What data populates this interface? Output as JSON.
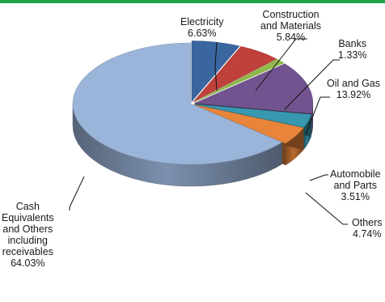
{
  "colors": {
    "top_bar": "#1fa34a",
    "leader": "#111111"
  },
  "chart_data": {
    "type": "pie",
    "title": "",
    "style": "3d-exploded",
    "slices": [
      {
        "label_lines": [
          "Electricity"
        ],
        "value_text": "6.63%",
        "value": 6.63,
        "color": "#3a66a0"
      },
      {
        "label_lines": [
          "Construction",
          "and Materials"
        ],
        "value_text": "5.84%",
        "value": 5.84,
        "color": "#c0403c"
      },
      {
        "label_lines": [
          "Banks"
        ],
        "value_text": "1.33%",
        "value": 1.33,
        "color": "#8fb94a"
      },
      {
        "label_lines": [
          "Oil and Gas"
        ],
        "value_text": "13.92%",
        "value": 13.92,
        "color": "#71538f"
      },
      {
        "label_lines": [
          "Automobile",
          "and Parts"
        ],
        "value_text": "3.51%",
        "value": 3.51,
        "color": "#3798b0"
      },
      {
        "label_lines": [
          "Others"
        ],
        "value_text": "4.74%",
        "value": 4.74,
        "color": "#e8853a"
      },
      {
        "label_lines": [
          "Cash",
          "Equivalents",
          "and Others",
          "including",
          "receivables"
        ],
        "value_text": "64.03%",
        "value": 64.03,
        "color": "#9bb4d9"
      }
    ]
  }
}
